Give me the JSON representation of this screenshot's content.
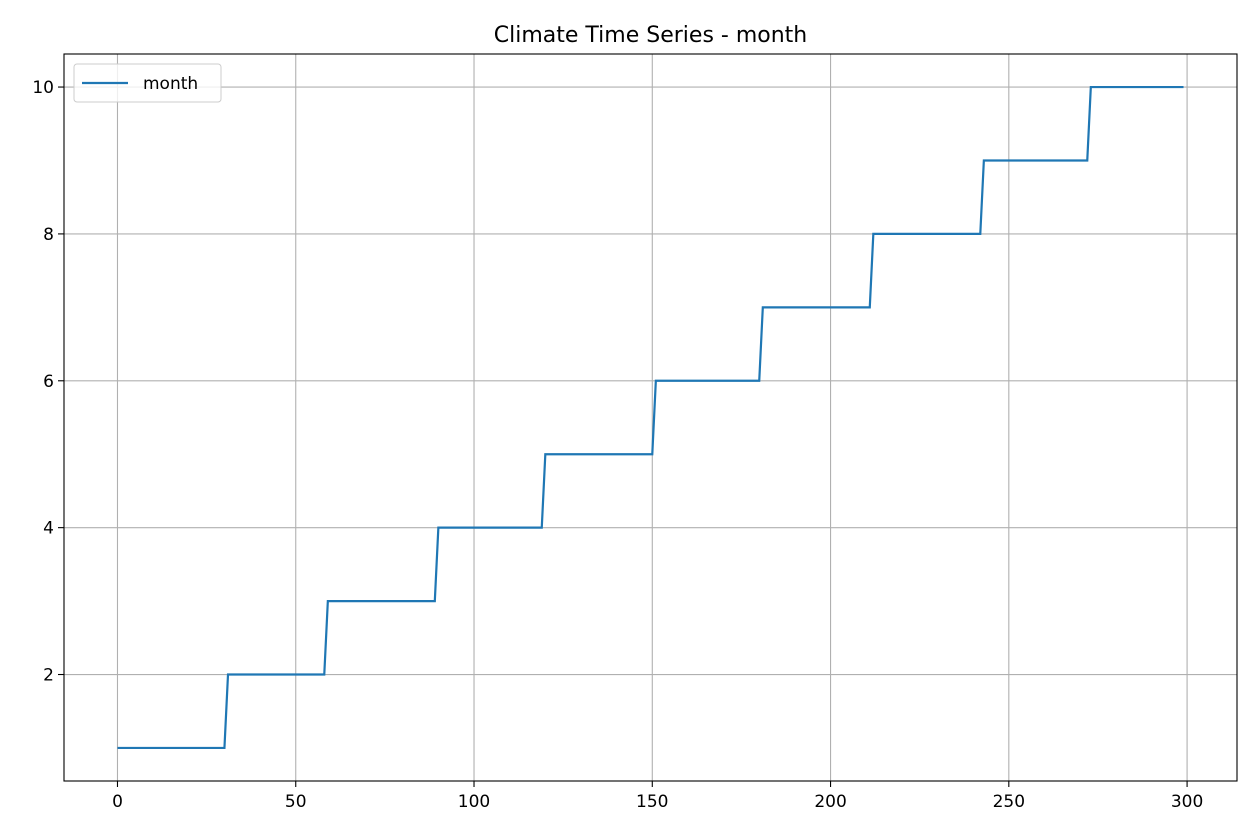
{
  "chart_data": {
    "type": "line",
    "title": "Climate Time Series - month",
    "xlabel": "",
    "ylabel": "",
    "xlim": [
      -15,
      314
    ],
    "ylim": [
      0.55,
      10.45
    ],
    "x_ticks": [
      0,
      50,
      100,
      150,
      200,
      250,
      300
    ],
    "y_ticks": [
      2,
      4,
      6,
      8,
      10
    ],
    "grid": true,
    "legend_position": "top-left",
    "colors": {
      "series": "#1f77b4"
    },
    "series": [
      {
        "name": "month",
        "x": [
          0,
          30,
          31,
          58,
          59,
          89,
          90,
          119,
          120,
          150,
          151,
          180,
          181,
          211,
          212,
          242,
          243,
          272,
          273,
          299
        ],
        "values": [
          1,
          1,
          2,
          2,
          3,
          3,
          4,
          4,
          5,
          5,
          6,
          6,
          7,
          7,
          8,
          8,
          9,
          9,
          10,
          10
        ]
      }
    ]
  }
}
